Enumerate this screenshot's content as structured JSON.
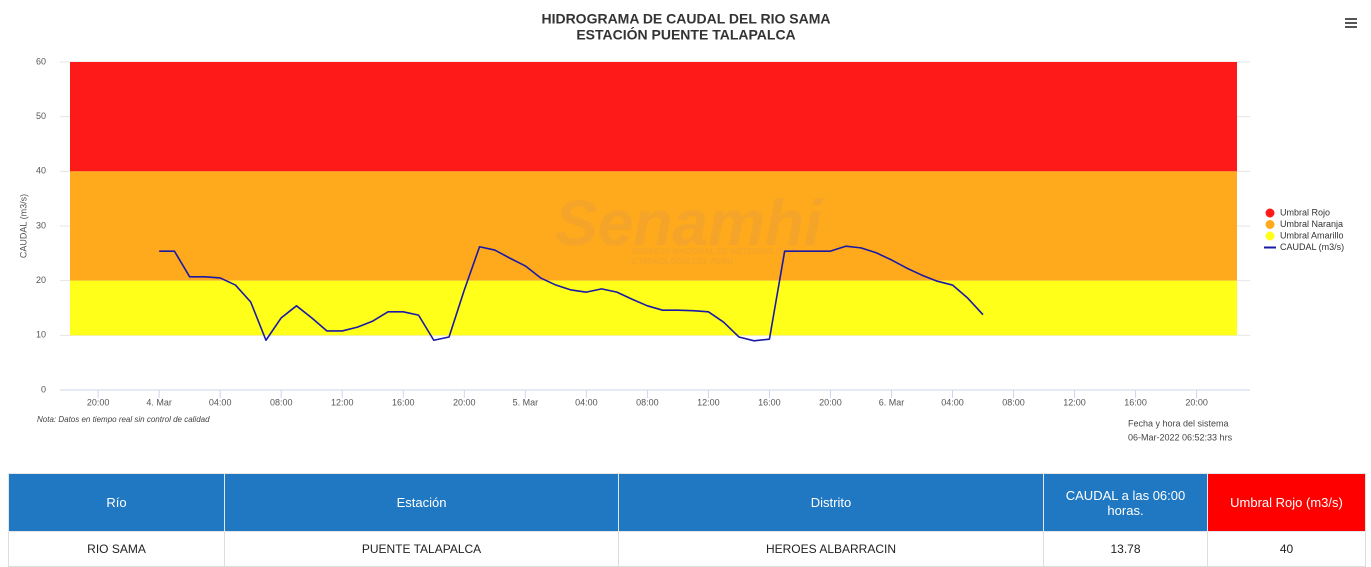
{
  "chart_data": {
    "type": "line",
    "title": "HIDROGRAMA DE CAUDAL DEL RIO SAMA",
    "subtitle": "ESTACIÓN PUENTE TALAPALCA",
    "y_label": "CAUDAL (m3/s)",
    "watermark": "Senamhi",
    "watermark_sub": [
      "SERVICIO NACIONAL DE METEOROLOGÍA",
      "E HIDROLOGÍA DEL PERÚ"
    ],
    "note": "Nota: Datos en tiempo real sin control de calidad",
    "system_time_label": "Fecha y hora del sistema",
    "system_time": "06-Mar-2022 06:52:33 hrs",
    "ylim": [
      0,
      60
    ],
    "yticks": [
      0,
      10,
      20,
      30,
      40,
      50,
      60
    ],
    "grid": true,
    "xlim": [
      "2022-03-03 17:30",
      "2022-03-06 23:30"
    ],
    "xticks": [
      {
        "value": "2022-03-03 20:00",
        "label": "20:00"
      },
      {
        "value": "2022-03-04 00:00",
        "label": "4. Mar"
      },
      {
        "value": "2022-03-04 04:00",
        "label": "04:00"
      },
      {
        "value": "2022-03-04 08:00",
        "label": "08:00"
      },
      {
        "value": "2022-03-04 12:00",
        "label": "12:00"
      },
      {
        "value": "2022-03-04 16:00",
        "label": "16:00"
      },
      {
        "value": "2022-03-04 20:00",
        "label": "20:00"
      },
      {
        "value": "2022-03-05 00:00",
        "label": "5. Mar"
      },
      {
        "value": "2022-03-05 04:00",
        "label": "04:00"
      },
      {
        "value": "2022-03-05 08:00",
        "label": "08:00"
      },
      {
        "value": "2022-03-05 12:00",
        "label": "12:00"
      },
      {
        "value": "2022-03-05 16:00",
        "label": "16:00"
      },
      {
        "value": "2022-03-05 20:00",
        "label": "20:00"
      },
      {
        "value": "2022-03-06 00:00",
        "label": "6. Mar"
      },
      {
        "value": "2022-03-06 04:00",
        "label": "04:00"
      },
      {
        "value": "2022-03-06 08:00",
        "label": "08:00"
      },
      {
        "value": "2022-03-06 12:00",
        "label": "12:00"
      },
      {
        "value": "2022-03-06 16:00",
        "label": "16:00"
      },
      {
        "value": "2022-03-06 20:00",
        "label": "20:00"
      }
    ],
    "bands": [
      {
        "name": "Umbral Rojo",
        "color": "#ff1a1a",
        "from": 40,
        "to": 60
      },
      {
        "name": "Umbral Naranja",
        "color": "#ffa91c",
        "from": 20,
        "to": 40
      },
      {
        "name": "Umbral Amarillo",
        "color": "#ffff1a",
        "from": 10,
        "to": 20
      }
    ],
    "legend": "right",
    "x": [
      "2022-03-04 00:00",
      "2022-03-04 01:00",
      "2022-03-04 02:00",
      "2022-03-04 03:00",
      "2022-03-04 04:00",
      "2022-03-04 05:00",
      "2022-03-04 06:00",
      "2022-03-04 07:00",
      "2022-03-04 08:00",
      "2022-03-04 09:00",
      "2022-03-04 10:00",
      "2022-03-04 11:00",
      "2022-03-04 12:00",
      "2022-03-04 13:00",
      "2022-03-04 14:00",
      "2022-03-04 15:00",
      "2022-03-04 16:00",
      "2022-03-04 17:00",
      "2022-03-04 18:00",
      "2022-03-04 19:00",
      "2022-03-04 20:00",
      "2022-03-04 21:00",
      "2022-03-04 22:00",
      "2022-03-04 23:00",
      "2022-03-05 00:00",
      "2022-03-05 01:00",
      "2022-03-05 02:00",
      "2022-03-05 03:00",
      "2022-03-05 04:00",
      "2022-03-05 05:00",
      "2022-03-05 06:00",
      "2022-03-05 07:00",
      "2022-03-05 08:00",
      "2022-03-05 09:00",
      "2022-03-05 10:00",
      "2022-03-05 11:00",
      "2022-03-05 12:00",
      "2022-03-05 13:00",
      "2022-03-05 14:00",
      "2022-03-05 15:00",
      "2022-03-05 16:00",
      "2022-03-05 17:00",
      "2022-03-05 18:00",
      "2022-03-05 19:00",
      "2022-03-05 20:00",
      "2022-03-05 21:00",
      "2022-03-05 22:00",
      "2022-03-05 23:00",
      "2022-03-06 00:00",
      "2022-03-06 01:00",
      "2022-03-06 02:00",
      "2022-03-06 03:00",
      "2022-03-06 04:00",
      "2022-03-06 05:00",
      "2022-03-06 06:00"
    ],
    "series": [
      {
        "name": "CAUDAL (m3/s)",
        "color": "#1a1aa6",
        "values": [
          25.4,
          25.4,
          20.7,
          20.7,
          20.5,
          19.2,
          16.1,
          9.1,
          13.2,
          15.4,
          13.2,
          10.8,
          10.8,
          11.5,
          12.6,
          14.3,
          14.3,
          13.7,
          9.1,
          9.7,
          18.3,
          26.2,
          25.6,
          24.1,
          22.7,
          20.5,
          19.2,
          18.3,
          17.9,
          18.5,
          17.9,
          16.6,
          15.4,
          14.6,
          14.6,
          14.5,
          14.3,
          12.4,
          9.7,
          9.0,
          9.3,
          25.4,
          25.4,
          25.4,
          25.4,
          26.3,
          26.0,
          25.1,
          23.8,
          22.3,
          21.0,
          19.9,
          19.2,
          16.8,
          13.78
        ]
      }
    ]
  },
  "table": {
    "headers": [
      "Río",
      "Estación",
      "Distrito",
      "CAUDAL a las 06:00 horas.",
      "Umbral Rojo (m3/s)"
    ],
    "rows": [
      [
        "RIO SAMA",
        "PUENTE TALAPALCA",
        "HEROES ALBARRACIN",
        "13.78",
        "40"
      ]
    ]
  }
}
